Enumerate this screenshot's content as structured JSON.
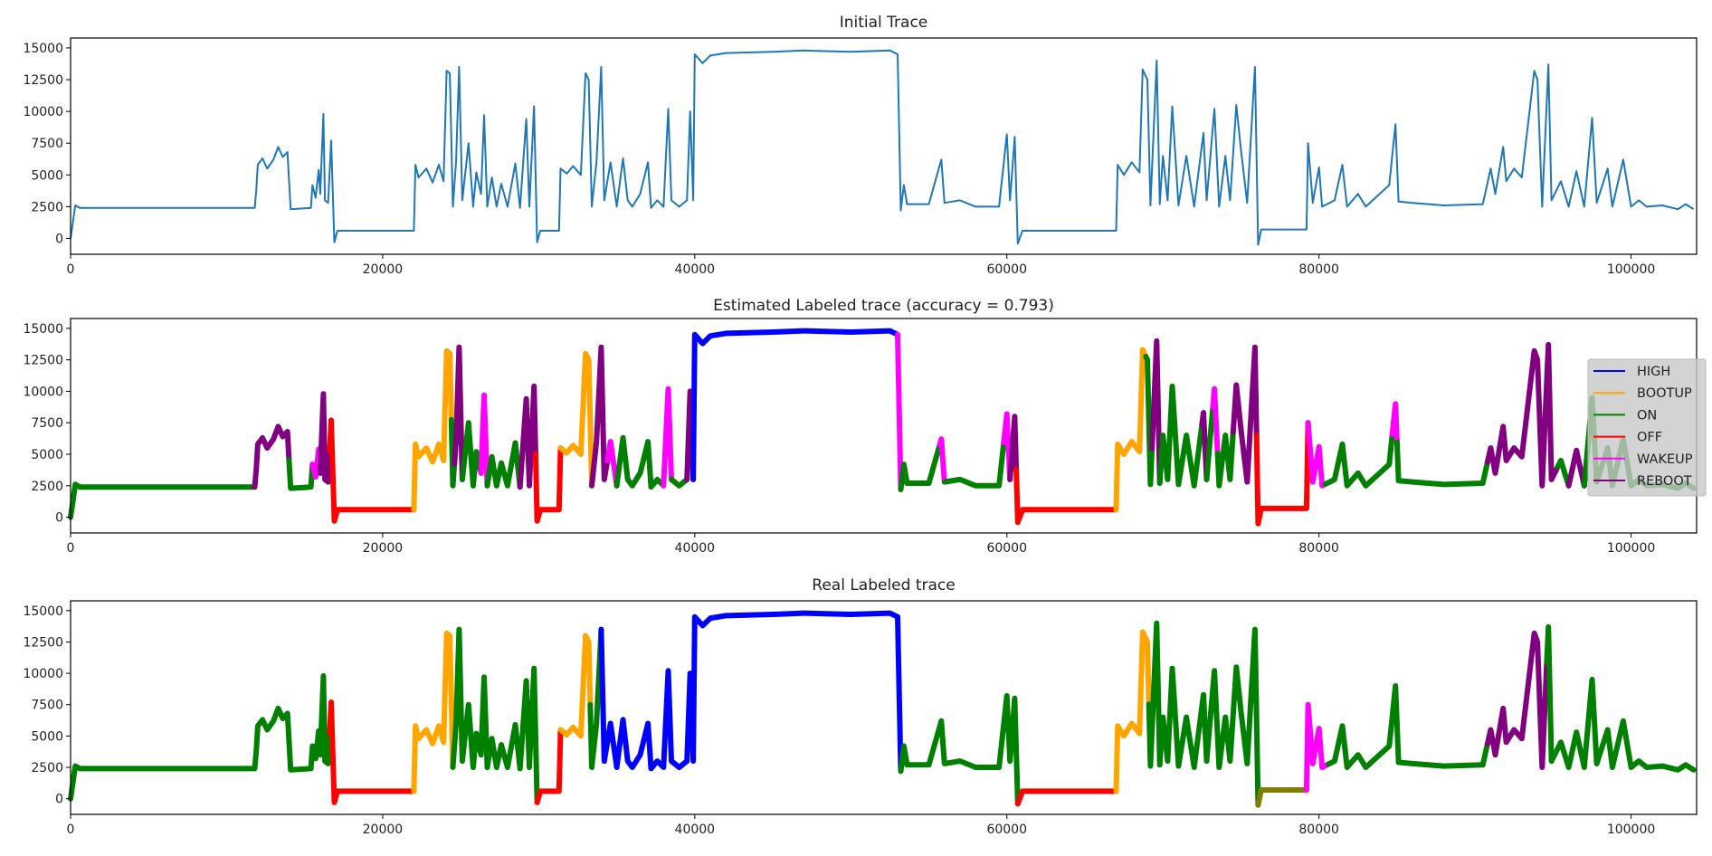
{
  "chart_data": {
    "type": "line",
    "xlim": [
      0,
      104200
    ],
    "ylim": [
      -1250,
      15780
    ],
    "xticks": [
      0,
      20000,
      40000,
      60000,
      80000,
      100000
    ],
    "yticks": [
      0,
      2500,
      5000,
      7500,
      10000,
      12500,
      15000
    ],
    "grid": false,
    "colors": {
      "trace": "#1f77b4",
      "HIGH": "#0000ff",
      "BOOTUP": "#ffa500",
      "ON": "#008000",
      "OFF": "#ff0000",
      "WAKEUP": "#ff00ff",
      "REBOOT": "#800080",
      "unlabeled": "#808000"
    },
    "trace": [
      [
        0,
        0
      ],
      [
        300,
        2600
      ],
      [
        600,
        2400
      ],
      [
        11800,
        2400
      ],
      [
        11900,
        3800
      ],
      [
        12000,
        5800
      ],
      [
        12300,
        6300
      ],
      [
        12600,
        5500
      ],
      [
        13000,
        6200
      ],
      [
        13300,
        7200
      ],
      [
        13600,
        6400
      ],
      [
        13900,
        6800
      ],
      [
        14100,
        2300
      ],
      [
        15400,
        2400
      ],
      [
        15500,
        4200
      ],
      [
        15700,
        3200
      ],
      [
        15900,
        5400
      ],
      [
        16000,
        3500
      ],
      [
        16200,
        9800
      ],
      [
        16300,
        3000
      ],
      [
        16500,
        2800
      ],
      [
        16700,
        7700
      ],
      [
        16900,
        -300
      ],
      [
        17100,
        600
      ],
      [
        22000,
        600
      ],
      [
        22100,
        5800
      ],
      [
        22300,
        4800
      ],
      [
        22800,
        5500
      ],
      [
        23200,
        4400
      ],
      [
        23600,
        5800
      ],
      [
        23900,
        4500
      ],
      [
        24100,
        13200
      ],
      [
        24300,
        13000
      ],
      [
        24500,
        2500
      ],
      [
        24700,
        6000
      ],
      [
        24900,
        13500
      ],
      [
        25100,
        3000
      ],
      [
        25500,
        7500
      ],
      [
        25800,
        2500
      ],
      [
        26000,
        5200
      ],
      [
        26300,
        3500
      ],
      [
        26500,
        9700
      ],
      [
        26700,
        2500
      ],
      [
        27000,
        4800
      ],
      [
        27300,
        2500
      ],
      [
        27600,
        4300
      ],
      [
        28000,
        2500
      ],
      [
        28500,
        5900
      ],
      [
        28800,
        2400
      ],
      [
        29200,
        9400
      ],
      [
        29400,
        2500
      ],
      [
        29700,
        10400
      ],
      [
        29900,
        -300
      ],
      [
        30100,
        600
      ],
      [
        31300,
        600
      ],
      [
        31400,
        5500
      ],
      [
        31800,
        5100
      ],
      [
        32200,
        5700
      ],
      [
        32700,
        5000
      ],
      [
        33000,
        13000
      ],
      [
        33200,
        12500
      ],
      [
        33400,
        2500
      ],
      [
        33700,
        6000
      ],
      [
        34000,
        13500
      ],
      [
        34200,
        3000
      ],
      [
        34600,
        6000
      ],
      [
        35000,
        2500
      ],
      [
        35400,
        6300
      ],
      [
        35700,
        3000
      ],
      [
        36000,
        2500
      ],
      [
        36500,
        3500
      ],
      [
        37000,
        6000
      ],
      [
        37200,
        2400
      ],
      [
        37600,
        3000
      ],
      [
        38000,
        2500
      ],
      [
        38300,
        10200
      ],
      [
        38500,
        3000
      ],
      [
        39000,
        2500
      ],
      [
        39500,
        3000
      ],
      [
        39700,
        10000
      ],
      [
        39900,
        3000
      ],
      [
        40000,
        14500
      ],
      [
        40500,
        13800
      ],
      [
        41000,
        14400
      ],
      [
        42000,
        14600
      ],
      [
        45000,
        14700
      ],
      [
        47000,
        14800
      ],
      [
        50000,
        14700
      ],
      [
        52500,
        14800
      ],
      [
        53000,
        14500
      ],
      [
        53200,
        2200
      ],
      [
        53400,
        4200
      ],
      [
        53600,
        2700
      ],
      [
        55000,
        2700
      ],
      [
        55800,
        6200
      ],
      [
        56000,
        2800
      ],
      [
        57000,
        3000
      ],
      [
        58000,
        2500
      ],
      [
        59500,
        2500
      ],
      [
        60000,
        8200
      ],
      [
        60200,
        3000
      ],
      [
        60500,
        8000
      ],
      [
        60700,
        -400
      ],
      [
        61000,
        600
      ],
      [
        67000,
        600
      ],
      [
        67100,
        5800
      ],
      [
        67500,
        5000
      ],
      [
        68000,
        6000
      ],
      [
        68500,
        5200
      ],
      [
        68700,
        13300
      ],
      [
        69000,
        12500
      ],
      [
        69200,
        2600
      ],
      [
        69600,
        14000
      ],
      [
        69800,
        2700
      ],
      [
        70000,
        6500
      ],
      [
        70300,
        3000
      ],
      [
        70600,
        10400
      ],
      [
        71000,
        2600
      ],
      [
        71500,
        6500
      ],
      [
        72000,
        2500
      ],
      [
        72600,
        8300
      ],
      [
        72800,
        3000
      ],
      [
        73300,
        10200
      ],
      [
        73600,
        2500
      ],
      [
        74000,
        6500
      ],
      [
        74300,
        3000
      ],
      [
        74700,
        10500
      ],
      [
        75000,
        7000
      ],
      [
        75400,
        2800
      ],
      [
        75900,
        13500
      ],
      [
        76100,
        -500
      ],
      [
        76300,
        700
      ],
      [
        79200,
        700
      ],
      [
        79300,
        7500
      ],
      [
        79600,
        2800
      ],
      [
        80000,
        5600
      ],
      [
        80200,
        2500
      ],
      [
        81000,
        3000
      ],
      [
        81500,
        5800
      ],
      [
        81800,
        2500
      ],
      [
        82500,
        3500
      ],
      [
        83000,
        2500
      ],
      [
        84500,
        4200
      ],
      [
        84900,
        9000
      ],
      [
        85100,
        2900
      ],
      [
        86000,
        2800
      ],
      [
        88000,
        2600
      ],
      [
        90500,
        2700
      ],
      [
        91000,
        5500
      ],
      [
        91300,
        3500
      ],
      [
        91800,
        7200
      ],
      [
        92000,
        4500
      ],
      [
        92500,
        5500
      ],
      [
        93000,
        4800
      ],
      [
        93800,
        13200
      ],
      [
        94000,
        12500
      ],
      [
        94300,
        2500
      ],
      [
        94700,
        13700
      ],
      [
        94900,
        3000
      ],
      [
        95500,
        4500
      ],
      [
        96000,
        2500
      ],
      [
        96500,
        5300
      ],
      [
        97000,
        2500
      ],
      [
        97500,
        9500
      ],
      [
        97800,
        2800
      ],
      [
        98500,
        5500
      ],
      [
        98800,
        2500
      ],
      [
        99500,
        6200
      ],
      [
        100000,
        2500
      ],
      [
        100500,
        3000
      ],
      [
        101000,
        2500
      ],
      [
        102000,
        2600
      ],
      [
        103000,
        2300
      ],
      [
        103500,
        2700
      ],
      [
        104000,
        2300
      ]
    ],
    "panels": [
      {
        "title": "Initial Trace"
      },
      {
        "title": "Estimated Labeled trace (accuracy = 0.793)",
        "legend": {
          "placement": "right",
          "entries": [
            "HIGH",
            "BOOTUP",
            "ON",
            "OFF",
            "WAKEUP",
            "REBOOT"
          ]
        },
        "segments": [
          [
            "ON",
            0,
            11800
          ],
          [
            "REBOOT",
            11800,
            14000
          ],
          [
            "ON",
            14000,
            15500
          ],
          [
            "WAKEUP",
            15500,
            16000
          ],
          [
            "REBOOT",
            16000,
            16600
          ],
          [
            "OFF",
            16600,
            22000
          ],
          [
            "BOOTUP",
            22000,
            24400
          ],
          [
            "ON",
            24400,
            24600
          ],
          [
            "REBOOT",
            24600,
            25100
          ],
          [
            "ON",
            25100,
            26300
          ],
          [
            "WAKEUP",
            26300,
            26700
          ],
          [
            "ON",
            26700,
            28800
          ],
          [
            "REBOOT",
            28800,
            29800
          ],
          [
            "OFF",
            29800,
            31400
          ],
          [
            "BOOTUP",
            31400,
            33400
          ],
          [
            "REBOOT",
            33400,
            34400
          ],
          [
            "WAKEUP",
            34400,
            35000
          ],
          [
            "ON",
            35000,
            38000
          ],
          [
            "WAKEUP",
            38000,
            38500
          ],
          [
            "ON",
            38500,
            39500
          ],
          [
            "REBOOT",
            39500,
            39900
          ],
          [
            "HIGH",
            39900,
            53000
          ],
          [
            "WAKEUP",
            53000,
            53200
          ],
          [
            "ON",
            53200,
            55700
          ],
          [
            "WAKEUP",
            55700,
            56000
          ],
          [
            "ON",
            56000,
            59800
          ],
          [
            "WAKEUP",
            59800,
            60200
          ],
          [
            "REBOOT",
            60200,
            60600
          ],
          [
            "OFF",
            60600,
            67000
          ],
          [
            "BOOTUP",
            67000,
            68900
          ],
          [
            "ON",
            68900,
            69300
          ],
          [
            "REBOOT",
            69300,
            69800
          ],
          [
            "ON",
            69800,
            72500
          ],
          [
            "REBOOT",
            72500,
            72800
          ],
          [
            "ON",
            72800,
            73200
          ],
          [
            "WAKEUP",
            73200,
            73500
          ],
          [
            "ON",
            73500,
            74500
          ],
          [
            "REBOOT",
            74500,
            76000
          ],
          [
            "OFF",
            76000,
            79300
          ],
          [
            "WAKEUP",
            79300,
            80400
          ],
          [
            "ON",
            80400,
            84700
          ],
          [
            "WAKEUP",
            84700,
            85000
          ],
          [
            "ON",
            85000,
            90800
          ],
          [
            "REBOOT",
            90800,
            95300
          ],
          [
            "ON",
            95300,
            96000
          ],
          [
            "REBOOT",
            96000,
            97000
          ],
          [
            "ON",
            97000,
            104000
          ]
        ]
      },
      {
        "title": "Real Labeled trace",
        "segments": [
          [
            "ON",
            0,
            16600
          ],
          [
            "OFF",
            16600,
            22000
          ],
          [
            "BOOTUP",
            22000,
            24500
          ],
          [
            "ON",
            24500,
            29900
          ],
          [
            "OFF",
            29900,
            31400
          ],
          [
            "BOOTUP",
            31400,
            33300
          ],
          [
            "ON",
            33300,
            34000
          ],
          [
            "HIGH",
            34000,
            53200
          ],
          [
            "ON",
            53200,
            60700
          ],
          [
            "OFF",
            60700,
            67000
          ],
          [
            "BOOTUP",
            67000,
            69100
          ],
          [
            "ON",
            69100,
            76100
          ],
          [
            "unlabeled",
            76100,
            79200
          ],
          [
            "WAKEUP",
            79200,
            80600
          ],
          [
            "ON",
            80600,
            90800
          ],
          [
            "REBOOT",
            90800,
            94600
          ],
          [
            "ON",
            94600,
            104000
          ]
        ]
      }
    ]
  }
}
